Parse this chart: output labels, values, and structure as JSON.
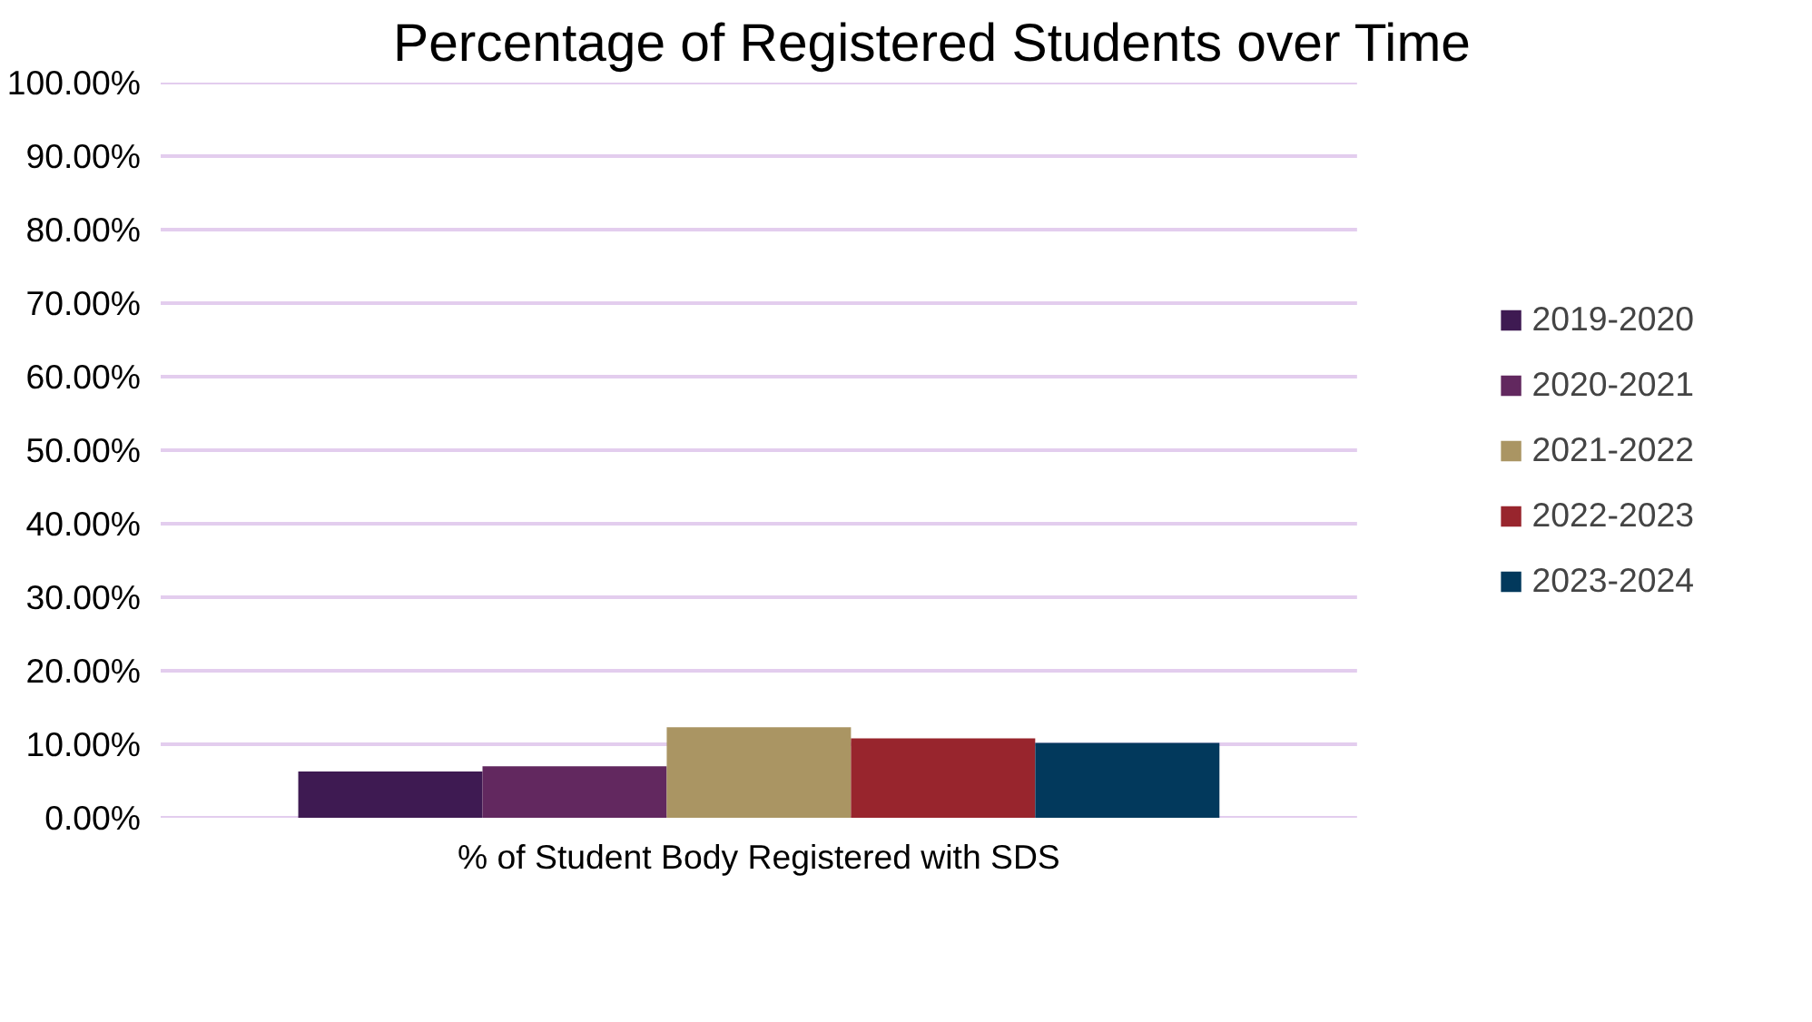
{
  "chart_data": {
    "type": "bar",
    "title": "Percentage of Registered Students over Time",
    "categories": [
      "% of Student Body Registered with SDS"
    ],
    "series": [
      {
        "name": "2019-2020",
        "color": "#3e1a52",
        "values": [
          6.3
        ]
      },
      {
        "name": "2020-2021",
        "color": "#62285f",
        "values": [
          7.0
        ]
      },
      {
        "name": "2021-2022",
        "color": "#aa9563",
        "values": [
          12.3
        ]
      },
      {
        "name": "2022-2023",
        "color": "#98252d",
        "values": [
          10.8
        ]
      },
      {
        "name": "2023-2024",
        "color": "#02395c",
        "values": [
          10.2
        ]
      }
    ],
    "ylim": [
      0,
      100
    ],
    "yticks": [
      {
        "value": 0,
        "label": "0.00%"
      },
      {
        "value": 10,
        "label": "10.00%"
      },
      {
        "value": 20,
        "label": "20.00%"
      },
      {
        "value": 30,
        "label": "30.00%"
      },
      {
        "value": 40,
        "label": "40.00%"
      },
      {
        "value": 50,
        "label": "50.00%"
      },
      {
        "value": 60,
        "label": "60.00%"
      },
      {
        "value": 70,
        "label": "70.00%"
      },
      {
        "value": 80,
        "label": "80.00%"
      },
      {
        "value": 90,
        "label": "90.00%"
      },
      {
        "value": 100,
        "label": "100.00%"
      }
    ],
    "grid": "y",
    "legend": "right"
  }
}
